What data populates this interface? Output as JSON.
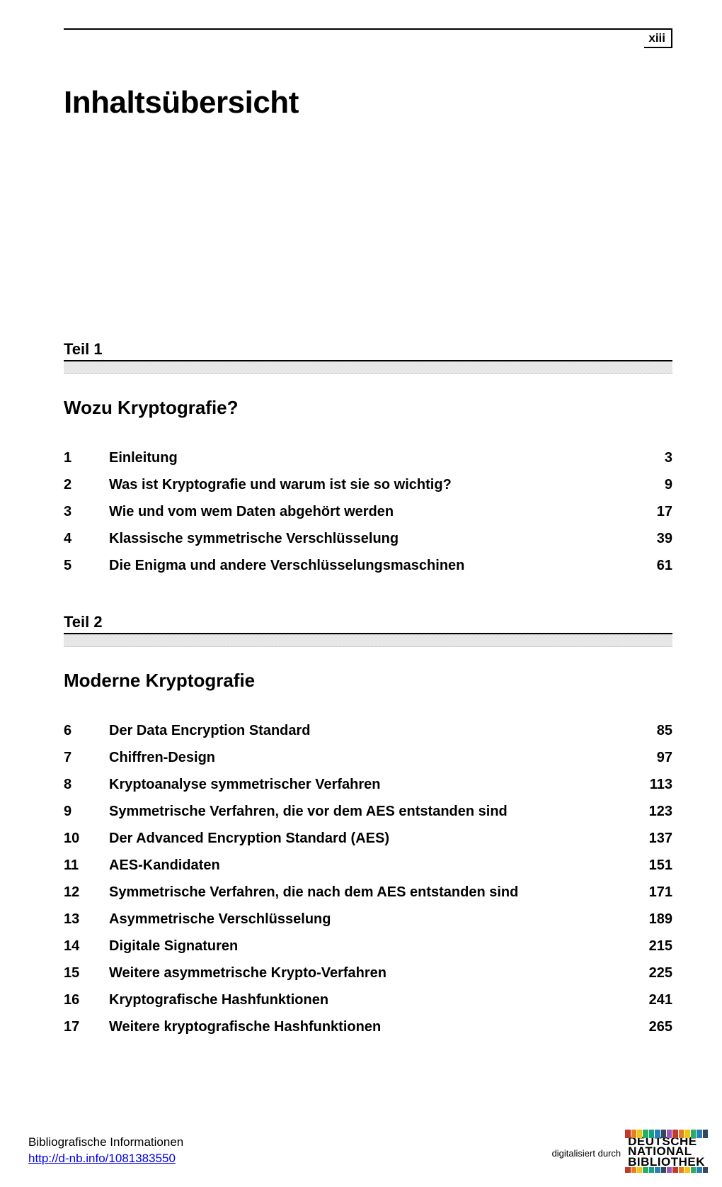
{
  "page_number": "xiii",
  "main_title": "Inhaltsübersicht",
  "colors": {
    "text": "#000000",
    "background": "#ffffff",
    "link": "#0000ee",
    "noise_band": "#f3f3f3"
  },
  "typography": {
    "body_family": "Arial, Helvetica, sans-serif",
    "main_title_fontsize": 44,
    "part_label_fontsize": 22,
    "part_title_fontsize": 26,
    "toc_fontsize": 20,
    "footer_fontsize": 17,
    "digi_fontsize": 13,
    "toc_weight": "bold"
  },
  "parts": [
    {
      "label": "Teil 1",
      "title": "Wozu Kryptografie?",
      "entries": [
        {
          "num": "1",
          "title": "Einleitung",
          "page": "3"
        },
        {
          "num": "2",
          "title": "Was ist Kryptografie und warum ist sie so wichtig?",
          "page": "9"
        },
        {
          "num": "3",
          "title": "Wie und vom wem Daten abgehört werden",
          "page": "17"
        },
        {
          "num": "4",
          "title": "Klassische symmetrische Verschlüsselung",
          "page": "39"
        },
        {
          "num": "5",
          "title": "Die Enigma und andere Verschlüsselungsmaschinen",
          "page": "61"
        }
      ]
    },
    {
      "label": "Teil 2",
      "title": "Moderne Kryptografie",
      "entries": [
        {
          "num": "6",
          "title": "Der Data Encryption Standard",
          "page": "85"
        },
        {
          "num": "7",
          "title": "Chiffren-Design",
          "page": "97"
        },
        {
          "num": "8",
          "title": "Kryptoanalyse symmetrischer Verfahren",
          "page": "113"
        },
        {
          "num": "9",
          "title": "Symmetrische Verfahren, die vor dem AES entstanden sind",
          "page": "123"
        },
        {
          "num": "10",
          "title": "Der Advanced Encryption Standard (AES)",
          "page": "137"
        },
        {
          "num": "11",
          "title": "AES-Kandidaten",
          "page": "151"
        },
        {
          "num": "12",
          "title": "Symmetrische Verfahren, die nach dem AES entstanden sind",
          "page": "171"
        },
        {
          "num": "13",
          "title": "Asymmetrische Verschlüsselung",
          "page": "189"
        },
        {
          "num": "14",
          "title": "Digitale Signaturen",
          "page": "215"
        },
        {
          "num": "15",
          "title": "Weitere asymmetrische Krypto-Verfahren",
          "page": "225"
        },
        {
          "num": "16",
          "title": "Kryptografische Hashfunktionen",
          "page": "241"
        },
        {
          "num": "17",
          "title": "Weitere kryptografische Hashfunktionen",
          "page": "265"
        }
      ]
    }
  ],
  "footer": {
    "info_label": "Bibliografische Informationen",
    "link_text": "http://d-nb.info/1081383550",
    "digitised_by": "digitalisiert durch",
    "logo": {
      "line1": "DEUTSCHE",
      "line2": "NATIONAL",
      "line3": "BIBLIOTHEK",
      "bar_colors": [
        "#c0392b",
        "#e67e22",
        "#f1c40f",
        "#27ae60",
        "#16a085",
        "#2980b9",
        "#34495e",
        "#9b59b6",
        "#c0392b",
        "#e67e22",
        "#f1c40f",
        "#27ae60",
        "#2980b9",
        "#34495e"
      ]
    }
  }
}
